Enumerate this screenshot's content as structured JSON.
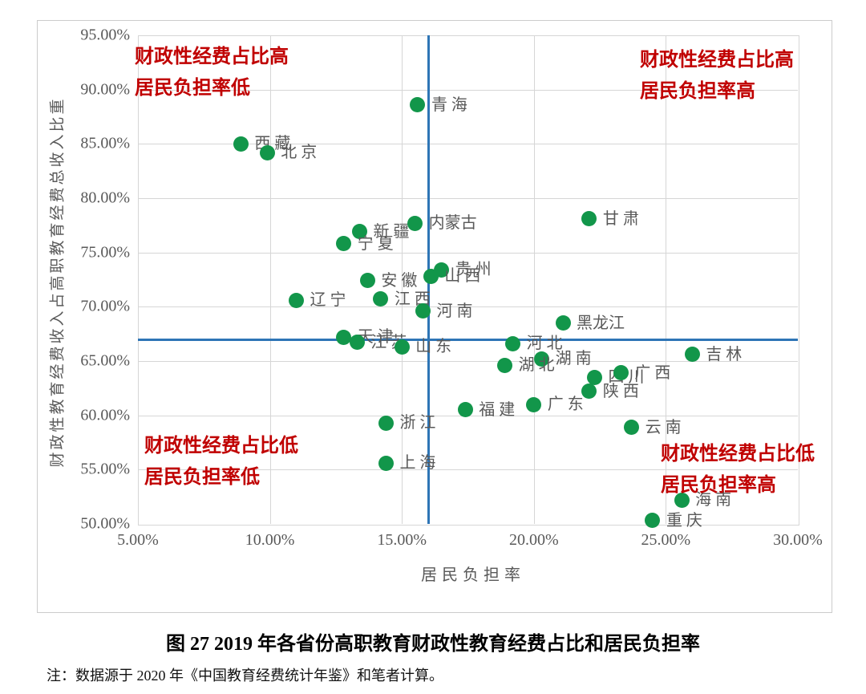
{
  "figure": {
    "title": "图 27  2019 年各省份高职教育财政性教育经费占比和居民负担率",
    "note": "注：数据源于 2020 年《中国教育经费统计年鉴》和笔者计算。"
  },
  "chart_data": {
    "type": "scatter",
    "title": "",
    "xlabel": "居民负担率",
    "ylabel": "财政性教育经费收入占高职教育经费总收入比重",
    "xlim": [
      5,
      30
    ],
    "ylim": [
      50,
      95
    ],
    "grid": true,
    "xtick_values": [
      5,
      10,
      15,
      20,
      25,
      30
    ],
    "xtick_labels": [
      "5.00%",
      "10.00%",
      "15.00%",
      "20.00%",
      "25.00%",
      "30.00%"
    ],
    "ytick_values": [
      95,
      90,
      85,
      80,
      75,
      70,
      65,
      60,
      55,
      50
    ],
    "ytick_labels": [
      "95.00%",
      "90.00%",
      "85.00%",
      "80.00%",
      "75.00%",
      "70.00%",
      "65.00%",
      "60.00%",
      "55.00%",
      "50.00%"
    ],
    "point_color": "#12964A",
    "crosshair": {
      "x": 16.0,
      "y": 67.0,
      "color": "#2E75B6"
    },
    "annotation_color": "#C00000",
    "quadrant_labels": [
      {
        "id": "top-left",
        "lines": [
          "财政性经费占比高",
          "居民负担率低"
        ]
      },
      {
        "id": "top-right",
        "lines": [
          "财政性经费占比高",
          "居民负担率高"
        ]
      },
      {
        "id": "bottom-left",
        "lines": [
          "财政性经费占比低",
          "居民负担率低"
        ]
      },
      {
        "id": "bottom-right",
        "lines": [
          "财政性经费占比低",
          "居民负担率高"
        ]
      }
    ],
    "series": [
      {
        "name": "青海",
        "label": "青 海",
        "x": 15.6,
        "y": 88.6
      },
      {
        "name": "西藏",
        "label": "西 藏",
        "x": 8.9,
        "y": 85.0
      },
      {
        "name": "北京",
        "label": "北 京",
        "x": 9.9,
        "y": 84.2
      },
      {
        "name": "甘肃",
        "label": "甘 肃",
        "x": 22.1,
        "y": 78.1
      },
      {
        "name": "新疆",
        "label": "新 疆",
        "x": 13.4,
        "y": 76.9
      },
      {
        "name": "内蒙古",
        "label": "内蒙古",
        "x": 15.5,
        "y": 77.7
      },
      {
        "name": "宁夏",
        "label": "宁 夏",
        "x": 12.8,
        "y": 75.8
      },
      {
        "name": "贵州",
        "label": "贵 州",
        "x": 16.5,
        "y": 73.4
      },
      {
        "name": "山西",
        "label": "山 西",
        "x": 16.1,
        "y": 72.8
      },
      {
        "name": "安徽",
        "label": "安 徽",
        "x": 13.7,
        "y": 72.4
      },
      {
        "name": "辽宁",
        "label": "辽 宁",
        "x": 11.0,
        "y": 70.6
      },
      {
        "name": "江西",
        "label": "江 西",
        "x": 14.2,
        "y": 70.7
      },
      {
        "name": "河南",
        "label": "河 南",
        "x": 15.8,
        "y": 69.6
      },
      {
        "name": "黑龙江",
        "label": "黑龙江",
        "x": 21.1,
        "y": 68.5
      },
      {
        "name": "天津",
        "label": "天 津",
        "x": 12.8,
        "y": 67.2
      },
      {
        "name": "江苏",
        "label": "江 苏",
        "x": 13.3,
        "y": 66.7
      },
      {
        "name": "山东",
        "label": "山 东",
        "x": 15.0,
        "y": 66.3
      },
      {
        "name": "河北",
        "label": "河 北",
        "x": 19.2,
        "y": 66.6
      },
      {
        "name": "吉林",
        "label": "吉 林",
        "x": 26.0,
        "y": 65.6
      },
      {
        "name": "湖南",
        "label": "湖 南",
        "x": 20.3,
        "y": 65.2
      },
      {
        "name": "湖北",
        "label": "湖 北",
        "x": 18.9,
        "y": 64.6
      },
      {
        "name": "四川",
        "label": "四 川",
        "x": 22.3,
        "y": 63.5
      },
      {
        "name": "广西",
        "label": "广 西",
        "x": 23.3,
        "y": 63.9
      },
      {
        "name": "陕西",
        "label": "陕 西",
        "x": 22.1,
        "y": 62.2
      },
      {
        "name": "广东",
        "label": "广 东",
        "x": 20.0,
        "y": 61.0
      },
      {
        "name": "福建",
        "label": "福 建",
        "x": 17.4,
        "y": 60.5
      },
      {
        "name": "浙江",
        "label": "浙 江",
        "x": 14.4,
        "y": 59.3
      },
      {
        "name": "云南",
        "label": "云 南",
        "x": 23.7,
        "y": 58.9
      },
      {
        "name": "上海",
        "label": "上 海",
        "x": 14.4,
        "y": 55.6
      },
      {
        "name": "海南",
        "label": "海 南",
        "x": 25.6,
        "y": 52.2
      },
      {
        "name": "重庆",
        "label": "重 庆",
        "x": 24.5,
        "y": 50.3
      }
    ]
  }
}
